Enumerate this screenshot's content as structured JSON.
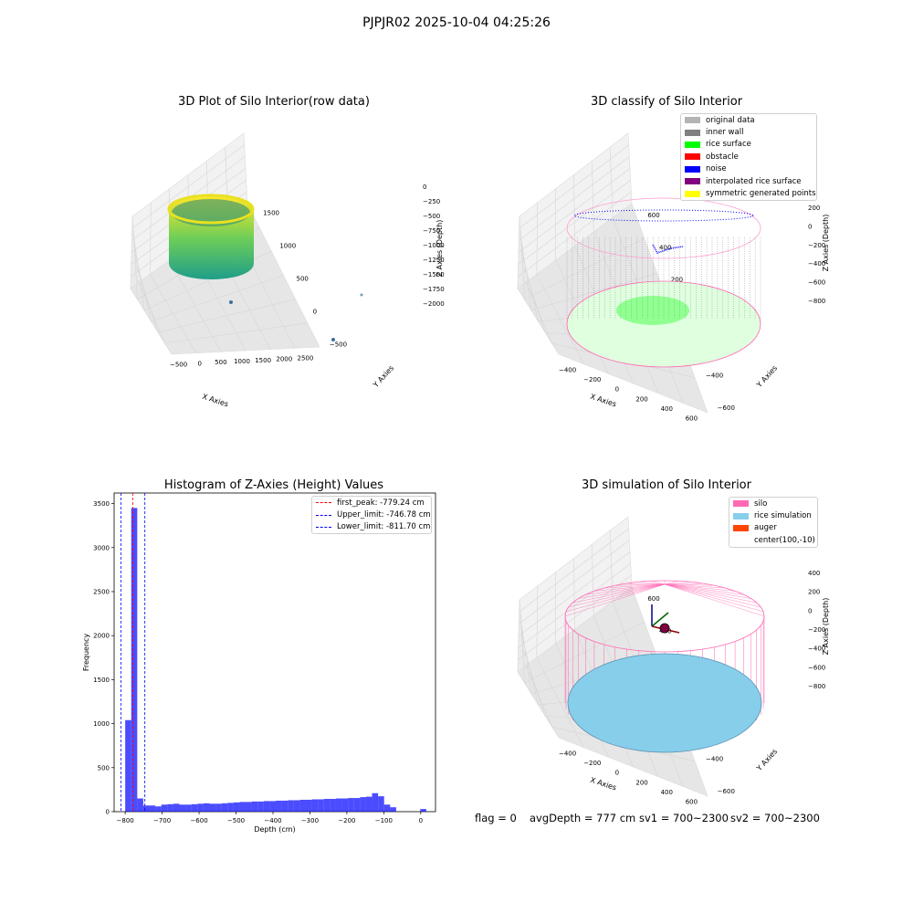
{
  "suptitle": "PJPJR02 2025-10-04 04:25:26",
  "panels": {
    "raw": {
      "title": "3D Plot of Silo Interior(row data)",
      "xlabel": "X Axies",
      "ylabel": "Y Axies",
      "zlabel": "Z Axies (Depth)",
      "xticks": [
        "-500",
        "0",
        "500",
        "1000",
        "1500",
        "2000",
        "2500"
      ],
      "yticks": [
        "-500",
        "0",
        "500",
        "1000",
        "1500"
      ],
      "zticks": [
        "0",
        "-250",
        "-500",
        "-750",
        "-1000",
        "-1250",
        "-1500",
        "-1750",
        "-2000"
      ]
    },
    "classify": {
      "title": "3D classify of Silo Interior",
      "xlabel": "X Axies",
      "ylabel": "Y Axies",
      "zlabel": "Z Axies (Depth)",
      "xticks": [
        "-400",
        "-200",
        "0",
        "200",
        "400",
        "600"
      ],
      "yticks": [
        "-600",
        "-400",
        "-200",
        "0",
        "200",
        "400",
        "600"
      ],
      "zticks": [
        "200",
        "0",
        "-200",
        "-400",
        "-600",
        "-800"
      ]
    },
    "simulation": {
      "title": "3D simulation of Silo Interior",
      "xlabel": "X Axies",
      "ylabel": "Y Axies",
      "zlabel": "Z Axies (Depth)",
      "xticks": [
        "-400",
        "-200",
        "0",
        "200",
        "400",
        "600"
      ],
      "yticks": [
        "-600",
        "-400",
        "-200",
        "0",
        "200",
        "400",
        "600"
      ],
      "zticks": [
        "400",
        "200",
        "0",
        "-200",
        "-400",
        "-600",
        "-800"
      ]
    }
  },
  "legends": {
    "classify": [
      {
        "label": "original data",
        "color": "#b4b4b4"
      },
      {
        "label": "inner wall",
        "color": "#808080"
      },
      {
        "label": "rice surface",
        "color": "#00ff00"
      },
      {
        "label": "obstacle",
        "color": "#ff0000"
      },
      {
        "label": "noise",
        "color": "#0000ff"
      },
      {
        "label": "interpolated rice surface",
        "color": "#800080"
      },
      {
        "label": "symmetric generated points",
        "color": "#ffff00"
      }
    ],
    "simulation": [
      {
        "label": "silo",
        "color": "#ff69b4"
      },
      {
        "label": "rice simulation",
        "color": "#87ceeb"
      },
      {
        "label": "auger",
        "color": "#ff4500"
      },
      {
        "label": "center(100,-10)",
        "color": ""
      }
    ]
  },
  "footer": {
    "flag": "flag = 0",
    "avg_depth": "avgDepth = 777 cm",
    "sv1": "sv1 = 700~2300",
    "sv2": "sv2 = 700~2300"
  },
  "chart_data": {
    "type": "bar",
    "title": "Histogram of Z-Axies (Height) Values",
    "xlabel": "Depth (cm)",
    "ylabel": "Frequency",
    "xlim": [
      -830,
      40
    ],
    "ylim": [
      0,
      3620
    ],
    "xticks": [
      -800,
      -700,
      -600,
      -500,
      -400,
      -300,
      -200,
      -100,
      0
    ],
    "yticks": [
      0,
      500,
      1000,
      1500,
      2000,
      2500,
      3000,
      3500
    ],
    "bar_color": "#0000ff",
    "bin_width": 16.3,
    "bin_starts": [
      -800,
      -783.7,
      -767.4,
      -751.1,
      -734.8,
      -718.5,
      -702.2,
      -685.9,
      -669.6,
      -653.3,
      -637,
      -620.7,
      -604.4,
      -588.1,
      -571.8,
      -555.5,
      -539.2,
      -522.9,
      -506.6,
      -490.3,
      -474,
      -457.7,
      -441.4,
      -425.1,
      -408.8,
      -392.5,
      -376.2,
      -359.9,
      -343.6,
      -327.3,
      -311,
      -294.7,
      -278.4,
      -262.1,
      -245.8,
      -229.5,
      -213.2,
      -196.9,
      -180.6,
      -164.3,
      -148,
      -131.7,
      -115.4,
      -99.1,
      -82.8,
      -66.5,
      -50.2,
      -33.9,
      -17.6,
      -1.3
    ],
    "counts": [
      1040,
      3450,
      150,
      70,
      70,
      60,
      80,
      85,
      90,
      80,
      80,
      85,
      90,
      95,
      90,
      90,
      95,
      100,
      105,
      110,
      110,
      115,
      115,
      120,
      120,
      125,
      125,
      130,
      130,
      135,
      135,
      140,
      140,
      145,
      145,
      150,
      150,
      155,
      155,
      165,
      170,
      210,
      175,
      80,
      50,
      0,
      0,
      0,
      0,
      30
    ],
    "reference_lines": [
      {
        "label": "first_peak: -779.24 cm",
        "value": -779.24,
        "color": "#ff0000"
      },
      {
        "label": "Upper_limit: -746.78 cm",
        "value": -746.78,
        "color": "#0000ff"
      },
      {
        "label": "Lower_limit: -811.70 cm",
        "value": -811.7,
        "color": "#0000ff"
      }
    ]
  }
}
